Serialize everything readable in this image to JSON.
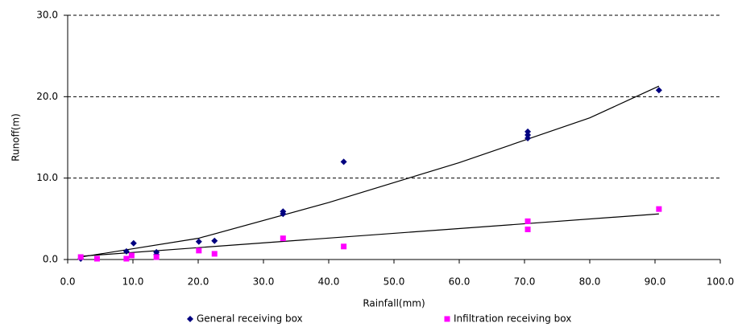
{
  "chart_data": {
    "type": "scatter",
    "x_label": "Rainfall(mm)",
    "y_label": "Runoff(m)",
    "xlim": [
      0,
      100
    ],
    "ylim": [
      0,
      30
    ],
    "xticks": [
      {
        "value": 0,
        "label": "0.0"
      },
      {
        "value": 10,
        "label": "10.0"
      },
      {
        "value": 20,
        "label": "20.0"
      },
      {
        "value": 30,
        "label": "30.0"
      },
      {
        "value": 40,
        "label": "40.0"
      },
      {
        "value": 50,
        "label": "50.0"
      },
      {
        "value": 60,
        "label": "60.0"
      },
      {
        "value": 70,
        "label": "70.0"
      },
      {
        "value": 80,
        "label": "80.0"
      },
      {
        "value": 90,
        "label": "90.0"
      },
      {
        "value": 100,
        "label": "100.0"
      }
    ],
    "yticks": [
      {
        "value": 0,
        "label": "0.0"
      },
      {
        "value": 10,
        "label": "10.0"
      },
      {
        "value": 20,
        "label": "20.0"
      },
      {
        "value": 30,
        "label": "30.0"
      }
    ],
    "grid": true,
    "series": [
      {
        "name": "General receiving box",
        "color": "#000080",
        "marker": "diamond",
        "x": [
          2.0,
          9.0,
          10.1,
          13.6,
          13.6,
          20.1,
          22.5,
          33.0,
          33.0,
          42.3,
          70.5,
          70.5,
          70.5,
          90.6
        ],
        "values": [
          0.1,
          1.0,
          2.0,
          0.9,
          0.6,
          2.2,
          2.3,
          5.9,
          5.6,
          12.0,
          15.7,
          15.3,
          14.9,
          20.8
        ]
      },
      {
        "name": "Infiltration receiving box",
        "color": "#ff00ff",
        "marker": "square",
        "x": [
          2.0,
          4.5,
          9.0,
          9.8,
          13.6,
          20.1,
          22.5,
          33.0,
          42.3,
          70.5,
          70.5,
          90.6
        ],
        "values": [
          0.3,
          0.1,
          0.1,
          0.5,
          0.3,
          1.1,
          0.7,
          2.6,
          1.6,
          4.7,
          3.7,
          6.2
        ]
      }
    ],
    "trendlines": [
      {
        "color": "#000000",
        "x": [
          2,
          20,
          40,
          60,
          80,
          90.6
        ],
        "values": [
          0.3,
          2.6,
          7.0,
          11.9,
          17.4,
          21.3
        ]
      },
      {
        "color": "#000000",
        "x": [
          2,
          90.6
        ],
        "values": [
          0.4,
          5.6
        ]
      }
    ]
  }
}
